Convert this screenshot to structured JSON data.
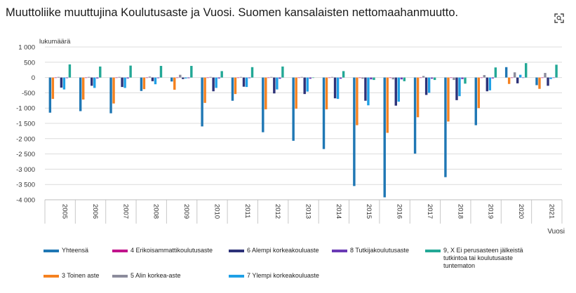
{
  "title": "Muuttoliike muuttujina Koulutusaste ja Vuosi. Suomen kansalaisten nettomaahanmuutto.",
  "expand_icon": "expand-icon",
  "chart_data": {
    "type": "bar",
    "ylabel": "lukumäärä",
    "xlabel": "Vuosi",
    "ylim": [
      -4000,
      1000
    ],
    "yticks": [
      1000,
      500,
      0,
      -500,
      -1000,
      -1500,
      -2000,
      -2500,
      -3000,
      -3500,
      -4000
    ],
    "ytick_labels": [
      "1 000",
      "500",
      "0",
      "-500",
      "-1 000",
      "-1 500",
      "-2 000",
      "-2 500",
      "-3 000",
      "-3 500",
      "-4 000"
    ],
    "grid": true,
    "legend_position": "bottom",
    "categories": [
      "2005",
      "2006",
      "2007",
      "2008",
      "2009",
      "2010",
      "2011",
      "2012",
      "2013",
      "2014",
      "2015",
      "2016",
      "2017",
      "2018",
      "2019",
      "2020",
      "2021"
    ],
    "series": [
      {
        "name": "Yhteensä",
        "color": "#1f77b4",
        "values": [
          -1150,
          -1100,
          -1170,
          -440,
          -130,
          -1600,
          -760,
          -1790,
          -2070,
          -2340,
          -3550,
          -3920,
          -2490,
          -3260,
          -1560,
          340,
          -250
        ]
      },
      {
        "name": "3 Toinen aste",
        "color": "#f58220",
        "values": [
          -700,
          -720,
          -850,
          -380,
          -400,
          -830,
          -540,
          -1040,
          -1020,
          -1040,
          -1560,
          -1810,
          -1300,
          -1440,
          -1000,
          -210,
          -370
        ]
      },
      {
        "name": "4 Erikoisammattikoulutusaste",
        "color": "#c1138c",
        "values": [
          -10,
          -10,
          -10,
          -10,
          -10,
          -10,
          -10,
          -10,
          -10,
          -10,
          -15,
          -15,
          -10,
          -10,
          -10,
          -5,
          -5
        ]
      },
      {
        "name": "5 Alin korkea-aste",
        "color": "#8c8c9c",
        "values": [
          20,
          20,
          20,
          30,
          90,
          20,
          20,
          20,
          20,
          20,
          -40,
          -60,
          50,
          -80,
          80,
          170,
          150
        ]
      },
      {
        "name": "6 Alempi korkeakouluaste",
        "color": "#2d3278",
        "values": [
          -330,
          -270,
          -310,
          -120,
          -50,
          -450,
          -300,
          -520,
          -540,
          -680,
          -760,
          -920,
          -570,
          -740,
          -450,
          -190,
          -270
        ]
      },
      {
        "name": "7 Ylempi korkeakouluaste",
        "color": "#1fa0e6",
        "values": [
          -390,
          -340,
          -340,
          -220,
          -30,
          -340,
          -310,
          -390,
          -460,
          -700,
          -910,
          -790,
          -500,
          -610,
          -420,
          90,
          -50
        ]
      },
      {
        "name": "8 Tutkijakoulutusaste",
        "color": "#6a3ab5",
        "values": [
          -20,
          -30,
          -30,
          -20,
          -20,
          -30,
          -20,
          -40,
          -40,
          -40,
          -60,
          -60,
          -40,
          -50,
          -30,
          -10,
          -10
        ]
      },
      {
        "name": "9, X Ei perusasteen jälkeistä tutkintoa tai koulutusaste tuntematon",
        "color": "#23a896",
        "values": [
          430,
          360,
          390,
          380,
          380,
          210,
          340,
          360,
          0,
          210,
          -80,
          -120,
          -80,
          -200,
          330,
          470,
          420
        ]
      }
    ]
  }
}
